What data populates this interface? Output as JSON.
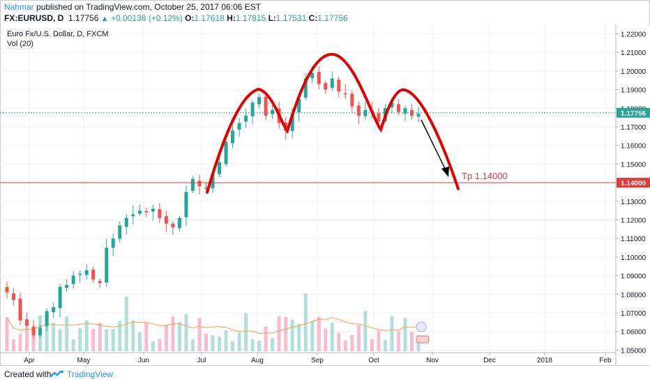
{
  "header": {
    "author": "Nahmar",
    "published_text": "published on TradingView.com, October 25, 2017 06:06 EST",
    "symbol": "FX:EURUSD, D",
    "last": "1.17756",
    "change": "+0.00138 (+0.12%)",
    "open_label": "O:",
    "open": "1.17618",
    "high_label": "H:",
    "high": "1.17815",
    "low_label": "L:",
    "low": "1.17531",
    "close_label": "C:",
    "close": "1.17756",
    "up_icon": "triangle-up-icon"
  },
  "legend": {
    "instrument": "Euro Fx/U.S. Dollar, D, FXCM",
    "volume": "Vol (20)"
  },
  "footer": {
    "created_with": "Created with",
    "brand": "TradingView",
    "logo_icon": "tradingview-logo-icon"
  },
  "colors": {
    "bull": "#26a69a",
    "bear": "#ef5350",
    "bull_vol": "#b2dfdb",
    "bear_vol": "#f8bbd0",
    "price_line": "#26a69a",
    "target_line": "#e53935",
    "pattern": "#e00000",
    "vol_ma": "#f6a04d",
    "grid": "#eef0f3"
  },
  "chart_data": {
    "type": "candlestick",
    "title": "Euro Fx/U.S. Dollar, D, FXCM",
    "x_ticks": [
      "Apr",
      "May",
      "Jun",
      "Jul",
      "Aug",
      "Sep",
      "Oct",
      "Nov",
      "Dec",
      "2018",
      "Feb"
    ],
    "y_ticks": [
      "1.22000",
      "1.21000",
      "1.20000",
      "1.19000",
      "1.18000",
      "1.17000",
      "1.16000",
      "1.15000",
      "1.14000",
      "1.13000",
      "1.12000",
      "1.11000",
      "1.10000",
      "1.09000",
      "1.08000",
      "1.07000",
      "1.06000",
      "1.05000"
    ],
    "ylim": [
      1.045,
      1.225
    ],
    "grid": true,
    "last_price": {
      "value": 1.17756,
      "label": "1.17756"
    },
    "target_line": {
      "value": 1.14,
      "label": "1.14000",
      "annotation": "Tp 1.14000"
    },
    "approx_closes": [
      1.081,
      1.077,
      1.066,
      1.063,
      1.058,
      1.062,
      1.071,
      1.073,
      1.084,
      1.085,
      1.09,
      1.091,
      1.093,
      1.088,
      1.086,
      1.105,
      1.11,
      1.117,
      1.121,
      1.123,
      1.125,
      1.124,
      1.126,
      1.121,
      1.118,
      1.116,
      1.121,
      1.135,
      1.142,
      1.138,
      1.137,
      1.145,
      1.151,
      1.162,
      1.168,
      1.172,
      1.176,
      1.183,
      1.186,
      1.176,
      1.179,
      1.172,
      1.168,
      1.177,
      1.185,
      1.196,
      1.199,
      1.193,
      1.19,
      1.196,
      1.189,
      1.188,
      1.181,
      1.176,
      1.179,
      1.178,
      1.173,
      1.18,
      1.183,
      1.178,
      1.18,
      1.176,
      1.177
    ],
    "patterns": [
      "left shoulder",
      "head",
      "right shoulder"
    ]
  }
}
